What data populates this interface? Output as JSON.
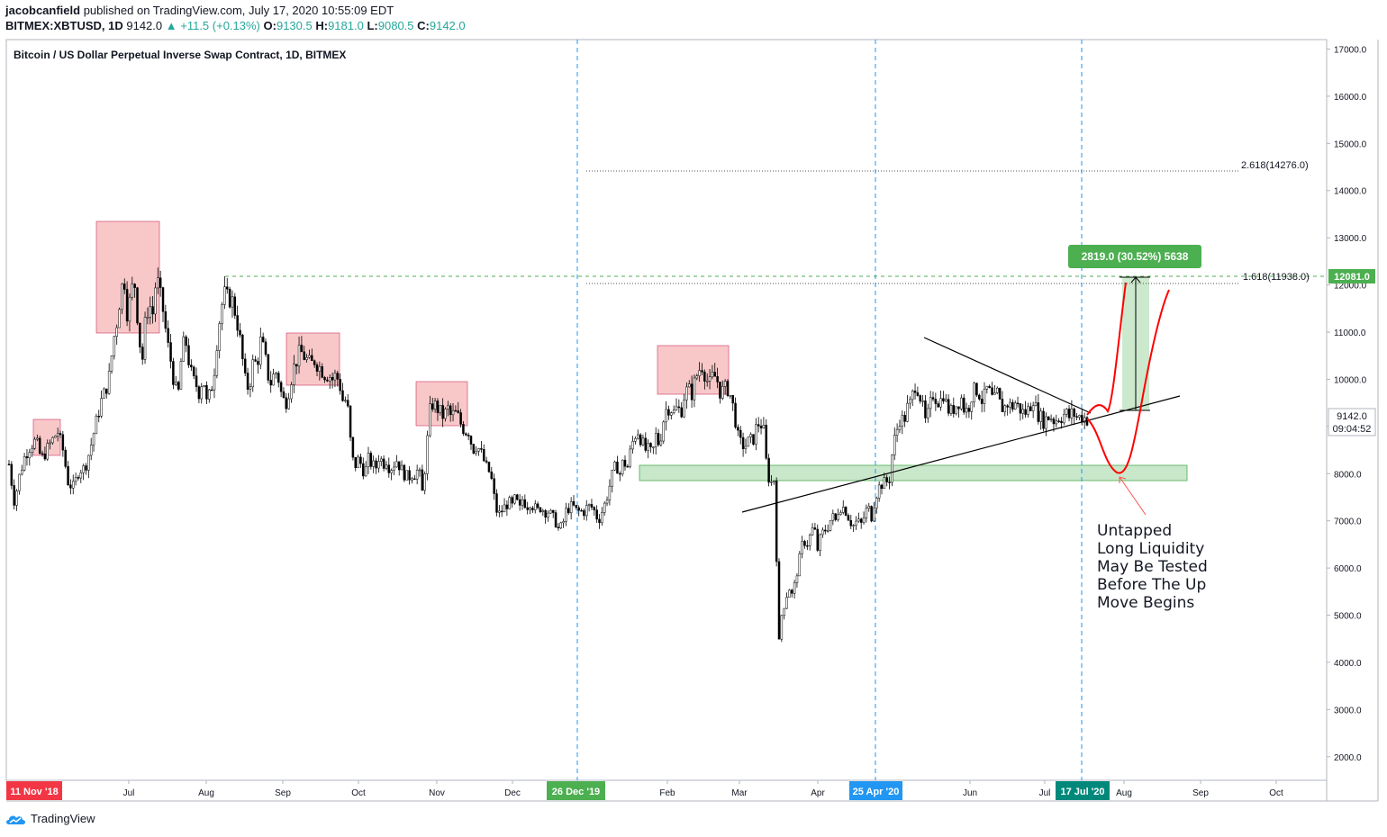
{
  "header": {
    "author": "jacobcanfield",
    "published": "published on TradingView.com, July 17, 2020 10:55:09 EDT",
    "symbol": "BITMEX:XBTUSD, 1D",
    "last": "9142.0",
    "change": "▲ +11.5 (+0.13%)",
    "open_label": "O:",
    "open": "9130.5",
    "high_label": "H:",
    "high": "9181.0",
    "low_label": "L:",
    "low": "9080.5",
    "close_label": "C:",
    "close": "9142.0"
  },
  "brand": {
    "name": "TradingView"
  },
  "annotations": {
    "note": "Untapped\nLong Liquidity\nMay Be Tested\nBefore The Up\nMove Begins",
    "measure_label": "2819.0 (30.52%) 5638",
    "fib_1618": "1.618(11938.0)",
    "fib_2618": "2.618(14276.0)",
    "price_tag": "12081.0",
    "last_price_tag": "9142.0",
    "countdown": "09:04:52"
  },
  "colors": {
    "up": "#ffffff",
    "down": "#000000",
    "red_box": "#f4a3a3",
    "green_box": "#b7dfb9",
    "measure_bg": "#4caf50",
    "projection": "#ff0000",
    "dash_blue": "#2196f3"
  },
  "chart_data": {
    "type": "candlestick",
    "title": "Bitcoin / US Dollar Perpetual Inverse Swap Contract, 1D, BITMEX",
    "ylim": [
      1500,
      17200
    ],
    "y_ticks": [
      "17000.0",
      "16000.0",
      "15000.0",
      "14000.0",
      "13000.0",
      "12000.0",
      "11000.0",
      "10000.0",
      "9000.0",
      "8000.0",
      "7000.0",
      "6000.0",
      "5000.0",
      "4000.0",
      "3000.0",
      "2000.0"
    ],
    "x_ticks": [
      "Jul",
      "Aug",
      "Sep",
      "Oct",
      "Nov",
      "Dec",
      "Feb",
      "Mar",
      "Apr",
      "Jun",
      "Jul",
      "Aug",
      "Sep",
      "Oct"
    ],
    "date_markers": [
      {
        "label": "11 Nov '18",
        "color": "#f23645"
      },
      {
        "label": "26 Dec '19",
        "color": "#4caf50"
      },
      {
        "label": "25 Apr '20",
        "color": "#2196f3"
      },
      {
        "label": "17 Jul '20",
        "color": "#00897b"
      }
    ],
    "price_path": [
      [
        0,
        8200
      ],
      [
        6,
        7400
      ],
      [
        12,
        8000
      ],
      [
        18,
        8400
      ],
      [
        24,
        8600
      ],
      [
        30,
        8700
      ],
      [
        36,
        8300
      ],
      [
        42,
        8500
      ],
      [
        48,
        8700
      ],
      [
        54,
        8900
      ],
      [
        60,
        8500
      ],
      [
        66,
        7800
      ],
      [
        72,
        7700
      ],
      [
        78,
        8100
      ],
      [
        84,
        8100
      ],
      [
        90,
        8500
      ],
      [
        96,
        9000
      ],
      [
        102,
        9500
      ],
      [
        108,
        9800
      ],
      [
        112,
        10100
      ],
      [
        116,
        10800
      ],
      [
        120,
        11200
      ],
      [
        124,
        11800
      ],
      [
        128,
        12200
      ],
      [
        132,
        11300
      ],
      [
        136,
        11900
      ],
      [
        140,
        12000
      ],
      [
        144,
        11100
      ],
      [
        148,
        10300
      ],
      [
        152,
        11300
      ],
      [
        156,
        11600
      ],
      [
        160,
        11400
      ],
      [
        164,
        12200
      ],
      [
        168,
        11800
      ],
      [
        172,
        11400
      ],
      [
        176,
        10800
      ],
      [
        180,
        10400
      ],
      [
        184,
        9900
      ],
      [
        188,
        9600
      ],
      [
        192,
        10500
      ],
      [
        196,
        10900
      ],
      [
        200,
        10400
      ],
      [
        204,
        10000
      ],
      [
        208,
        9900
      ],
      [
        212,
        9700
      ],
      [
        216,
        10100
      ],
      [
        220,
        9500
      ],
      [
        224,
        9700
      ],
      [
        228,
        10100
      ],
      [
        232,
        10900
      ],
      [
        236,
        11500
      ],
      [
        240,
        11800
      ],
      [
        244,
        11700
      ],
      [
        248,
        11700
      ],
      [
        252,
        11400
      ],
      [
        256,
        11000
      ],
      [
        260,
        10400
      ],
      [
        264,
        9800
      ],
      [
        268,
        9900
      ],
      [
        272,
        10400
      ],
      [
        276,
        10300
      ],
      [
        280,
        10800
      ],
      [
        284,
        10600
      ],
      [
        288,
        10100
      ],
      [
        292,
        9900
      ],
      [
        296,
        10200
      ],
      [
        300,
        10000
      ],
      [
        304,
        9600
      ],
      [
        308,
        9500
      ],
      [
        312,
        9800
      ],
      [
        316,
        10200
      ],
      [
        320,
        10400
      ],
      [
        324,
        10600
      ],
      [
        328,
        10500
      ],
      [
        332,
        10400
      ],
      [
        336,
        10300
      ],
      [
        340,
        10400
      ],
      [
        344,
        10300
      ],
      [
        348,
        10200
      ],
      [
        352,
        10100
      ],
      [
        356,
        10100
      ],
      [
        360,
        10000
      ],
      [
        364,
        10100
      ],
      [
        368,
        9900
      ],
      [
        372,
        9500
      ],
      [
        376,
        9600
      ],
      [
        380,
        8700
      ],
      [
        384,
        8100
      ],
      [
        388,
        8300
      ],
      [
        392,
        8200
      ],
      [
        396,
        8000
      ],
      [
        400,
        8300
      ],
      [
        404,
        8200
      ],
      [
        408,
        8100
      ],
      [
        412,
        8400
      ],
      [
        416,
        8200
      ],
      [
        420,
        8300
      ],
      [
        424,
        8100
      ],
      [
        428,
        8200
      ],
      [
        432,
        8300
      ],
      [
        436,
        8100
      ],
      [
        440,
        8000
      ],
      [
        444,
        7900
      ],
      [
        448,
        8000
      ],
      [
        452,
        8000
      ],
      [
        456,
        8100
      ],
      [
        460,
        7600
      ],
      [
        464,
        8300
      ],
      [
        468,
        9300
      ],
      [
        472,
        9500
      ],
      [
        476,
        9400
      ],
      [
        480,
        9300
      ],
      [
        484,
        9200
      ],
      [
        488,
        9400
      ],
      [
        492,
        9200
      ],
      [
        496,
        9300
      ],
      [
        500,
        9200
      ],
      [
        504,
        9000
      ],
      [
        508,
        8900
      ],
      [
        512,
        8900
      ],
      [
        516,
        8500
      ],
      [
        520,
        8600
      ],
      [
        524,
        8500
      ],
      [
        528,
        8300
      ],
      [
        532,
        8100
      ],
      [
        536,
        8000
      ],
      [
        540,
        7500
      ],
      [
        544,
        7100
      ],
      [
        548,
        7200
      ],
      [
        552,
        7300
      ],
      [
        556,
        7400
      ],
      [
        560,
        7300
      ],
      [
        564,
        7500
      ],
      [
        568,
        7200
      ],
      [
        572,
        7500
      ],
      [
        576,
        7300
      ],
      [
        580,
        7400
      ],
      [
        584,
        7300
      ],
      [
        588,
        7200
      ],
      [
        592,
        7300
      ],
      [
        596,
        7200
      ],
      [
        600,
        7200
      ],
      [
        604,
        7100
      ],
      [
        608,
        7000
      ],
      [
        612,
        6800
      ],
      [
        616,
        6900
      ],
      [
        620,
        7200
      ],
      [
        624,
        7300
      ],
      [
        628,
        7300
      ],
      [
        632,
        7200
      ],
      [
        636,
        7200
      ],
      [
        640,
        7200
      ],
      [
        644,
        7300
      ],
      [
        648,
        7300
      ],
      [
        652,
        7200
      ],
      [
        656,
        7000
      ],
      [
        660,
        7200
      ],
      [
        664,
        7400
      ],
      [
        668,
        7700
      ],
      [
        672,
        8000
      ],
      [
        676,
        8200
      ],
      [
        680,
        8000
      ],
      [
        684,
        8300
      ],
      [
        688,
        8100
      ],
      [
        692,
        8500
      ],
      [
        696,
        8800
      ],
      [
        700,
        8900
      ],
      [
        704,
        8700
      ],
      [
        708,
        8500
      ],
      [
        712,
        8500
      ],
      [
        716,
        8400
      ],
      [
        720,
        8800
      ],
      [
        724,
        8600
      ],
      [
        728,
        9100
      ],
      [
        732,
        9400
      ],
      [
        736,
        9400
      ],
      [
        740,
        9300
      ],
      [
        744,
        9400
      ],
      [
        748,
        9300
      ],
      [
        752,
        9700
      ],
      [
        756,
        9800
      ],
      [
        760,
        9700
      ],
      [
        764,
        10000
      ],
      [
        768,
        10200
      ],
      [
        772,
        10300
      ],
      [
        776,
        10000
      ],
      [
        780,
        9900
      ],
      [
        784,
        10100
      ],
      [
        788,
        10000
      ],
      [
        792,
        9700
      ],
      [
        796,
        9800
      ],
      [
        800,
        9800
      ],
      [
        804,
        9600
      ],
      [
        808,
        9200
      ],
      [
        812,
        8700
      ],
      [
        816,
        8600
      ],
      [
        820,
        8600
      ],
      [
        824,
        8700
      ],
      [
        828,
        8700
      ],
      [
        832,
        9000
      ],
      [
        836,
        9100
      ],
      [
        840,
        8900
      ],
      [
        844,
        8000
      ],
      [
        848,
        7800
      ],
      [
        852,
        7900
      ],
      [
        856,
        5000
      ],
      [
        858,
        4000
      ],
      [
        860,
        5000
      ],
      [
        864,
        5300
      ],
      [
        868,
        5600
      ],
      [
        872,
        5400
      ],
      [
        876,
        5800
      ],
      [
        880,
        6200
      ],
      [
        884,
        6600
      ],
      [
        888,
        6500
      ],
      [
        892,
        6700
      ],
      [
        896,
        6900
      ],
      [
        900,
        6400
      ],
      [
        904,
        6700
      ],
      [
        908,
        6800
      ],
      [
        912,
        6900
      ],
      [
        916,
        7100
      ],
      [
        920,
        7000
      ],
      [
        924,
        7300
      ],
      [
        928,
        7300
      ],
      [
        932,
        7200
      ],
      [
        936,
        7000
      ],
      [
        940,
        6900
      ],
      [
        944,
        7000
      ],
      [
        948,
        6900
      ],
      [
        952,
        7100
      ],
      [
        956,
        7300
      ],
      [
        960,
        7100
      ],
      [
        964,
        7500
      ],
      [
        968,
        7700
      ],
      [
        972,
        7800
      ],
      [
        976,
        7800
      ],
      [
        980,
        7900
      ],
      [
        984,
        8600
      ],
      [
        988,
        8900
      ],
      [
        992,
        9200
      ],
      [
        996,
        9100
      ],
      [
        1000,
        9400
      ],
      [
        1004,
        9500
      ],
      [
        1008,
        9900
      ],
      [
        1012,
        9800
      ],
      [
        1016,
        9500
      ],
      [
        1020,
        9100
      ],
      [
        1024,
        9300
      ],
      [
        1028,
        9700
      ],
      [
        1032,
        9600
      ],
      [
        1036,
        9500
      ],
      [
        1040,
        9700
      ],
      [
        1044,
        9400
      ],
      [
        1048,
        9300
      ],
      [
        1052,
        9400
      ],
      [
        1056,
        9500
      ],
      [
        1060,
        9600
      ],
      [
        1064,
        9300
      ],
      [
        1068,
        9400
      ],
      [
        1072,
        9700
      ],
      [
        1076,
        9800
      ],
      [
        1080,
        9700
      ],
      [
        1084,
        9500
      ],
      [
        1088,
        9800
      ],
      [
        1092,
        9700
      ],
      [
        1096,
        9500
      ],
      [
        1100,
        9700
      ],
      [
        1104,
        9400
      ],
      [
        1108,
        9400
      ],
      [
        1112,
        9500
      ],
      [
        1116,
        9400
      ],
      [
        1120,
        9500
      ],
      [
        1124,
        9400
      ],
      [
        1128,
        9300
      ],
      [
        1132,
        9300
      ],
      [
        1136,
        9400
      ],
      [
        1140,
        9600
      ],
      [
        1144,
        9300
      ],
      [
        1148,
        9200
      ],
      [
        1152,
        9100
      ],
      [
        1156,
        9200
      ],
      [
        1160,
        9200
      ],
      [
        1164,
        9100
      ],
      [
        1168,
        9200
      ],
      [
        1172,
        9200
      ],
      [
        1176,
        9300
      ],
      [
        1180,
        9200
      ],
      [
        1184,
        9300
      ],
      [
        1188,
        9200
      ],
      [
        1192,
        9200
      ],
      [
        1196,
        9200
      ],
      [
        1200,
        9142
      ]
    ]
  }
}
